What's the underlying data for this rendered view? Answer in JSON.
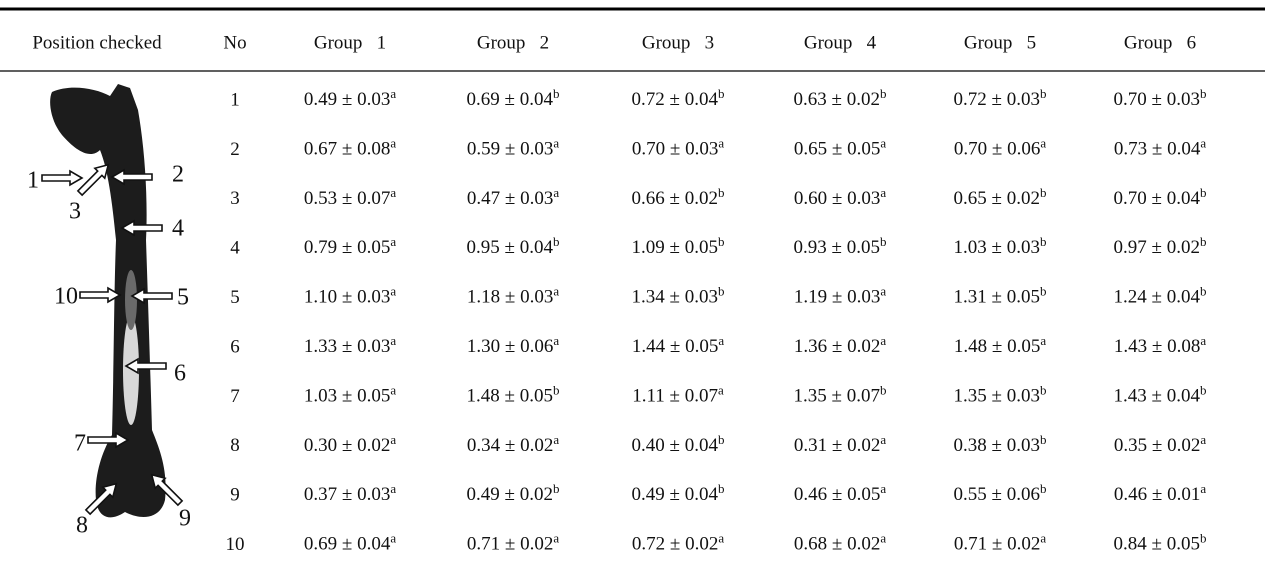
{
  "table": {
    "header": [
      "Position checked",
      "No",
      "Group   1",
      "Group   2",
      "Group   3",
      "Group   4",
      "Group   5",
      "Group   6"
    ],
    "rows": [
      {
        "no": "1",
        "cells": [
          [
            "0.49 ± 0.03",
            "a"
          ],
          [
            "0.69 ± 0.04",
            "b"
          ],
          [
            "0.72 ± 0.04",
            "b"
          ],
          [
            "0.63 ± 0.02",
            "b"
          ],
          [
            "0.72 ± 0.03",
            "b"
          ],
          [
            "0.70 ± 0.03",
            "b"
          ]
        ]
      },
      {
        "no": "2",
        "cells": [
          [
            "0.67 ± 0.08",
            "a"
          ],
          [
            "0.59 ± 0.03",
            "a"
          ],
          [
            "0.70 ± 0.03",
            "a"
          ],
          [
            "0.65 ± 0.05",
            "a"
          ],
          [
            "0.70 ± 0.06",
            "a"
          ],
          [
            "0.73 ± 0.04",
            "a"
          ]
        ]
      },
      {
        "no": "3",
        "cells": [
          [
            "0.53 ± 0.07",
            "a"
          ],
          [
            "0.47 ± 0.03",
            "a"
          ],
          [
            "0.66 ± 0.02",
            "b"
          ],
          [
            "0.60 ± 0.03",
            "a"
          ],
          [
            "0.65 ± 0.02",
            "b"
          ],
          [
            "0.70 ± 0.04",
            "b"
          ]
        ]
      },
      {
        "no": "4",
        "cells": [
          [
            "0.79 ± 0.05",
            "a"
          ],
          [
            "0.95 ± 0.04",
            "b"
          ],
          [
            "1.09 ± 0.05",
            "b"
          ],
          [
            "0.93 ± 0.05",
            "b"
          ],
          [
            "1.03 ± 0.03",
            "b"
          ],
          [
            "0.97 ± 0.02",
            "b"
          ]
        ]
      },
      {
        "no": "5",
        "cells": [
          [
            "1.10 ± 0.03",
            "a"
          ],
          [
            "1.18 ± 0.03",
            "a"
          ],
          [
            "1.34 ± 0.03",
            "b"
          ],
          [
            "1.19 ± 0.03",
            "a"
          ],
          [
            "1.31 ± 0.05",
            "b"
          ],
          [
            "1.24 ± 0.04",
            "b"
          ]
        ]
      },
      {
        "no": "6",
        "cells": [
          [
            "1.33 ± 0.03",
            "a"
          ],
          [
            "1.30 ± 0.06",
            "a"
          ],
          [
            "1.44 ± 0.05",
            "a"
          ],
          [
            "1.36 ± 0.02",
            "a"
          ],
          [
            "1.48 ± 0.05",
            "a"
          ],
          [
            "1.43 ± 0.08",
            "a"
          ]
        ]
      },
      {
        "no": "7",
        "cells": [
          [
            "1.03 ± 0.05",
            "a"
          ],
          [
            "1.48 ± 0.05",
            "b"
          ],
          [
            "1.11 ± 0.07",
            "a"
          ],
          [
            "1.35 ± 0.07",
            "b"
          ],
          [
            "1.35 ± 0.03",
            "b"
          ],
          [
            "1.43 ± 0.04",
            "b"
          ]
        ]
      },
      {
        "no": "8",
        "cells": [
          [
            "0.30 ± 0.02",
            "a"
          ],
          [
            "0.34 ± 0.02",
            "a"
          ],
          [
            "0.40 ± 0.04",
            "b"
          ],
          [
            "0.31 ± 0.02",
            "a"
          ],
          [
            "0.38 ± 0.03",
            "b"
          ],
          [
            "0.35 ± 0.02",
            "a"
          ]
        ]
      },
      {
        "no": "9",
        "cells": [
          [
            "0.37 ± 0.03",
            "a"
          ],
          [
            "0.49 ± 0.02",
            "b"
          ],
          [
            "0.49 ± 0.04",
            "b"
          ],
          [
            "0.46 ± 0.05",
            "a"
          ],
          [
            "0.55 ± 0.06",
            "b"
          ],
          [
            "0.46 ± 0.01",
            "a"
          ]
        ]
      },
      {
        "no": "10",
        "cells": [
          [
            "0.69 ± 0.04",
            "a"
          ],
          [
            "0.71 ± 0.02",
            "a"
          ],
          [
            "0.72 ± 0.02",
            "a"
          ],
          [
            "0.68 ± 0.02",
            "a"
          ],
          [
            "0.71 ± 0.02",
            "a"
          ],
          [
            "0.84 ± 0.05",
            "b"
          ]
        ]
      }
    ]
  },
  "figure": {
    "labels": [
      "1",
      "2",
      "3",
      "4",
      "5",
      "6",
      "7",
      "8",
      "9",
      "10"
    ]
  }
}
